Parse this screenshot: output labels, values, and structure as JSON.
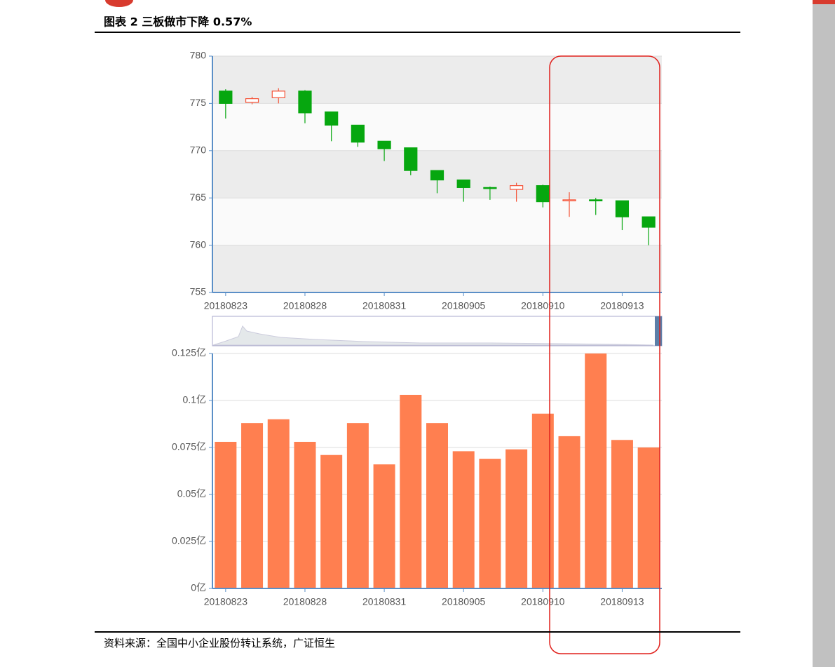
{
  "header": {
    "title": "图表 2 三板做市下降 0.57%"
  },
  "chart_data": [
    {
      "type": "candlestick",
      "categories": [
        "20180823",
        null,
        null,
        "20180828",
        null,
        null,
        "20180831",
        null,
        null,
        "20180905",
        null,
        null,
        "20180910",
        null,
        null,
        "20180913",
        null
      ],
      "open": [
        776.3,
        775.1,
        775.6,
        776.3,
        774.1,
        772.7,
        771.0,
        770.3,
        767.9,
        766.9,
        766.1,
        765.9,
        766.3,
        764.7,
        764.8,
        764.7,
        763.0
      ],
      "close": [
        775.0,
        775.5,
        776.3,
        774.0,
        772.7,
        770.9,
        770.2,
        767.9,
        766.9,
        766.1,
        766.0,
        766.3,
        764.6,
        764.8,
        764.7,
        763.0,
        761.9
      ],
      "high": [
        776.5,
        775.7,
        776.6,
        776.4,
        774.1,
        772.7,
        771.0,
        770.3,
        767.9,
        766.9,
        766.2,
        766.6,
        766.4,
        765.6,
        765.0,
        764.7,
        763.0
      ],
      "low": [
        773.4,
        774.9,
        775.0,
        772.9,
        771.0,
        770.4,
        768.9,
        767.4,
        765.5,
        764.6,
        764.8,
        764.6,
        764.0,
        763.0,
        763.2,
        761.6,
        760.0
      ],
      "up_color": "#f4553a",
      "down_color": "#06a70f",
      "ylim": [
        755,
        780
      ],
      "yticks": [
        755,
        760,
        765,
        770,
        775,
        780
      ],
      "grid": true
    },
    {
      "type": "bar",
      "categories": [
        "20180823",
        null,
        null,
        "20180828",
        null,
        null,
        "20180831",
        null,
        null,
        "20180905",
        null,
        null,
        "20180910",
        null,
        null,
        "20180913",
        null
      ],
      "values": [
        0.078,
        0.088,
        0.09,
        0.078,
        0.071,
        0.088,
        0.066,
        0.103,
        0.088,
        0.073,
        0.069,
        0.074,
        0.093,
        0.081,
        0.125,
        0.079,
        0.075
      ],
      "color": "#ff7f50",
      "ylim": [
        0,
        0.125
      ],
      "yticks": [
        {
          "value": 0,
          "label": "0亿"
        },
        {
          "value": 0.025,
          "label": "0.025亿"
        },
        {
          "value": 0.05,
          "label": "0.05亿"
        },
        {
          "value": 0.075,
          "label": "0.075亿"
        },
        {
          "value": 0.1,
          "label": "0.1亿"
        },
        {
          "value": 0.125,
          "label": "0.125亿"
        }
      ],
      "grid": true
    }
  ],
  "footer": {
    "source": "资料来源：全国中小企业股份转让系统，广证恒生"
  }
}
